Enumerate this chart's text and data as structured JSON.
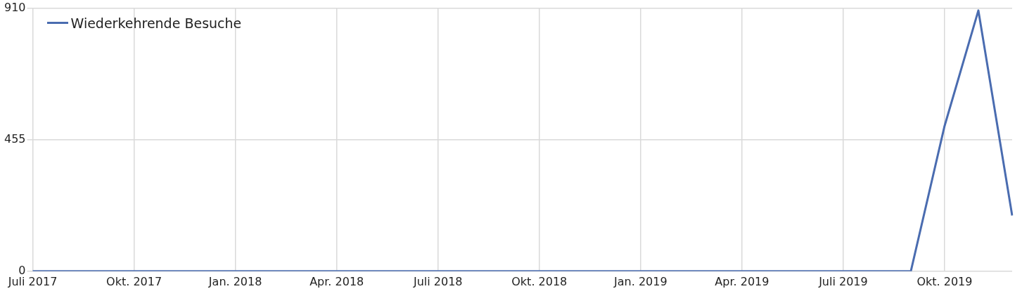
{
  "chart_data": {
    "type": "line",
    "categories": [
      "Juli 2017",
      null,
      null,
      "Okt. 2017",
      null,
      null,
      "Jan. 2018",
      null,
      null,
      "Apr. 2018",
      null,
      null,
      "Juli 2018",
      null,
      null,
      "Okt. 2018",
      null,
      null,
      "Jan. 2019",
      null,
      null,
      "Apr. 2019",
      null,
      null,
      "Juli 2019",
      null,
      null,
      "Okt. 2019",
      null,
      null
    ],
    "series": [
      {
        "name": "Wiederkehrende Besuche",
        "color": "#4a6cb0",
        "values": [
          0,
          0,
          0,
          0,
          0,
          0,
          0,
          0,
          0,
          0,
          0,
          0,
          0,
          0,
          0,
          0,
          0,
          0,
          0,
          0,
          0,
          0,
          0,
          0,
          0,
          0,
          0,
          503,
          902,
          193
        ]
      }
    ],
    "ylim": [
      0,
      910
    ],
    "yticks": [
      0,
      455,
      910
    ],
    "grid": true,
    "legend": "top left",
    "marker": "none",
    "line_style": "solid"
  }
}
